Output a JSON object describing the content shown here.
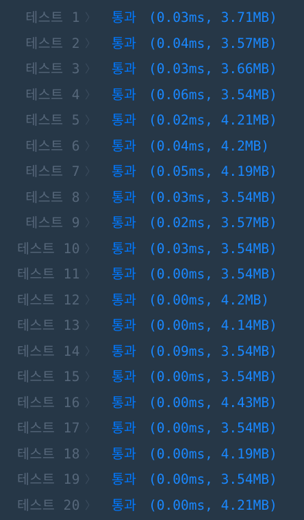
{
  "results": [
    {
      "label": "테스트 1",
      "status": "통과",
      "detail": "(0.03ms, 3.71MB)"
    },
    {
      "label": "테스트 2",
      "status": "통과",
      "detail": "(0.04ms, 3.57MB)"
    },
    {
      "label": "테스트 3",
      "status": "통과",
      "detail": "(0.03ms, 3.66MB)"
    },
    {
      "label": "테스트 4",
      "status": "통과",
      "detail": "(0.06ms, 3.54MB)"
    },
    {
      "label": "테스트 5",
      "status": "통과",
      "detail": "(0.02ms, 4.21MB)"
    },
    {
      "label": "테스트 6",
      "status": "통과",
      "detail": "(0.04ms, 4.2MB)"
    },
    {
      "label": "테스트 7",
      "status": "통과",
      "detail": "(0.05ms, 4.19MB)"
    },
    {
      "label": "테스트 8",
      "status": "통과",
      "detail": "(0.03ms, 3.54MB)"
    },
    {
      "label": "테스트 9",
      "status": "통과",
      "detail": "(0.02ms, 3.57MB)"
    },
    {
      "label": "테스트 10",
      "status": "통과",
      "detail": "(0.03ms, 3.54MB)"
    },
    {
      "label": "테스트 11",
      "status": "통과",
      "detail": "(0.00ms, 3.54MB)"
    },
    {
      "label": "테스트 12",
      "status": "통과",
      "detail": "(0.00ms, 4.2MB)"
    },
    {
      "label": "테스트 13",
      "status": "통과",
      "detail": "(0.00ms, 4.14MB)"
    },
    {
      "label": "테스트 14",
      "status": "통과",
      "detail": "(0.09ms, 3.54MB)"
    },
    {
      "label": "테스트 15",
      "status": "통과",
      "detail": "(0.00ms, 3.54MB)"
    },
    {
      "label": "테스트 16",
      "status": "통과",
      "detail": "(0.00ms, 4.43MB)"
    },
    {
      "label": "테스트 17",
      "status": "통과",
      "detail": "(0.00ms, 3.54MB)"
    },
    {
      "label": "테스트 18",
      "status": "통과",
      "detail": "(0.00ms, 4.19MB)"
    },
    {
      "label": "테스트 19",
      "status": "통과",
      "detail": "(0.00ms, 3.54MB)"
    },
    {
      "label": "테스트 20",
      "status": "통과",
      "detail": "(0.00ms, 4.21MB)"
    }
  ],
  "separator_icon": "chevron-right-icon",
  "colors": {
    "background": "#263747",
    "label": "#56677a",
    "separator": "#3b4c5e",
    "status_pass": "#0078ff",
    "detail": "#1a88ff"
  }
}
